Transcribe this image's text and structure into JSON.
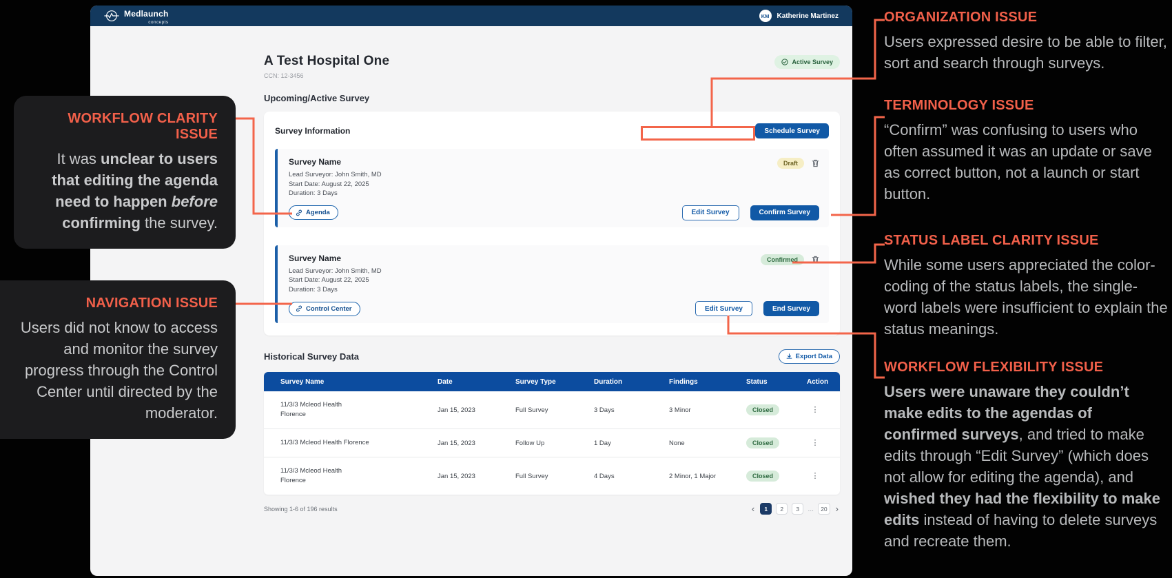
{
  "annotations": {
    "accent_color": "#F3654A",
    "left": [
      {
        "title": "WORKFLOW CLARITY ISSUE",
        "segments": [
          {
            "text": "It was "
          },
          {
            "text": "unclear to users that editing the agenda need to happen ",
            "bold": true
          },
          {
            "text": "before",
            "bold": true,
            "italic": true
          },
          {
            "text": " ",
            "bold": true
          },
          {
            "text": "confirming",
            "bold": true
          },
          {
            "text": " the survey."
          }
        ]
      },
      {
        "title": "NAVIGATION ISSUE",
        "segments": [
          {
            "text": "Users did not know to access and monitor the survey progress through the Control Center until directed by the moderator."
          }
        ]
      }
    ],
    "right": [
      {
        "title": "ORGANIZATION ISSUE",
        "segments": [
          {
            "text": "Users expressed desire to be able to filter, sort and search through surveys."
          }
        ]
      },
      {
        "title": "TERMINOLOGY ISSUE",
        "segments": [
          {
            "text": "“Confirm” was confusing to users who often assumed it was an update or save as correct button, not a launch or start button."
          }
        ]
      },
      {
        "title": "STATUS LABEL CLARITY ISSUE",
        "segments": [
          {
            "text": "While some users appreciated the color-coding of the status labels, the single-word labels were insufficient to explain the status meanings."
          }
        ]
      },
      {
        "title": "WORKFLOW FLEXIBILITY ISSUE",
        "segments": [
          {
            "text": "Users were unaware they couldn’t make edits to the agendas of confirmed surveys",
            "bold": true
          },
          {
            "text": ", and tried to make edits through “Edit Survey” (which does not allow for editing the agenda), and "
          },
          {
            "text": "wished they had the flexibility to make edits",
            "bold": true
          },
          {
            "text": " instead of having to delete surveys and recreate them."
          }
        ]
      }
    ]
  },
  "app": {
    "navbar": {
      "brand": "Medlaunch",
      "brand_sub": "concepts",
      "user_initials": "KM",
      "user_name": "Katherine Martinez"
    },
    "page": {
      "title": "A Test Hospital One",
      "ccn": "CCN: 12-3456",
      "status_badge": "Active Survey",
      "section_title": "Upcoming/Active Survey"
    },
    "survey_info": {
      "title": "Survey Information",
      "schedule_button": "Schedule Survey",
      "cards": [
        {
          "name": "Survey Name",
          "lead": "Lead Surveyor: John Smith, MD",
          "start": "Start Date: August 22, 2025",
          "duration": "Duration: 3 Days",
          "chip": "Agenda",
          "badge": "Draft",
          "badge_variant": "draft",
          "buttons": [
            {
              "label": "Edit Survey",
              "style": "outline",
              "name": "edit-survey-button"
            },
            {
              "label": "Confirm Survey",
              "style": "solid",
              "name": "confirm-survey-button"
            }
          ]
        },
        {
          "name": "Survey Name",
          "lead": "Lead Surveyor: John Smith, MD",
          "start": "Start Date: August 22, 2025",
          "duration": "Duration: 3 Days",
          "chip": "Control Center",
          "badge": "Confirmed",
          "badge_variant": "confirmed",
          "buttons": [
            {
              "label": "Edit Survey",
              "style": "outline",
              "name": "edit-survey-button"
            },
            {
              "label": "End Survey",
              "style": "solid",
              "name": "end-survey-button"
            }
          ]
        }
      ]
    },
    "historical": {
      "title": "Historical Survey Data",
      "export_button": "Export Data",
      "table": {
        "headers": [
          "Survey Name",
          "Date",
          "Survey Type",
          "Duration",
          "Findings",
          "Status",
          "Action"
        ],
        "rows": [
          {
            "name": "11/3/3 Mcleod Health\nFlorence",
            "date": "Jan 15, 2023",
            "type": "Full Survey",
            "duration": "3 Days",
            "findings": "3 Minor",
            "status": "Closed",
            "action": "⋮"
          },
          {
            "name": "11/3/3 Mcleod Health Florence",
            "date": "Jan 15, 2023",
            "type": "Follow Up",
            "duration": "1 Day",
            "findings": "None",
            "status": "Closed",
            "action": "⋮"
          },
          {
            "name": "11/3/3 Mcleod Health\nFlorence",
            "date": "Jan 15, 2023",
            "type": "Full Survey",
            "duration": "4 Days",
            "findings": "2 Minor, 1 Major",
            "status": "Closed",
            "action": "⋮"
          }
        ]
      },
      "footer": "Showing 1-6 of 196 results",
      "pagination": {
        "prev": "‹",
        "next": "›",
        "pages": [
          "1",
          "2",
          "3",
          "…",
          "20"
        ],
        "active": "1"
      }
    }
  }
}
